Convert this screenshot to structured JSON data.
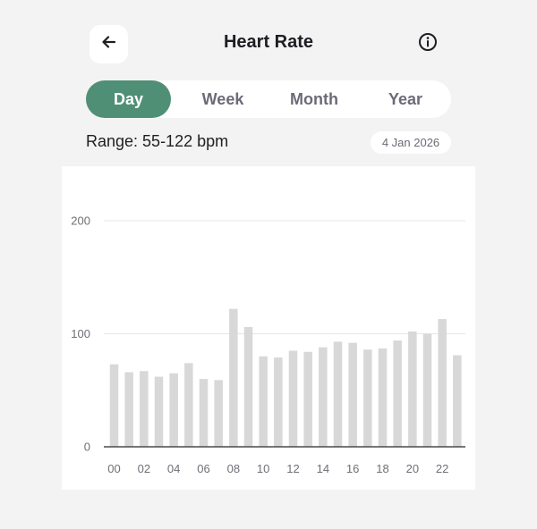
{
  "header": {
    "title": "Heart Rate",
    "back_icon": "arrow-left-icon",
    "info_icon": "info-icon"
  },
  "tabs": [
    {
      "label": "Day",
      "active": true
    },
    {
      "label": "Week",
      "active": false
    },
    {
      "label": "Month",
      "active": false
    },
    {
      "label": "Year",
      "active": false
    }
  ],
  "summary": {
    "range_text": "Range: 55-122 bpm",
    "date": "4 Jan 2026"
  },
  "colors": {
    "accent": "#4f8f76",
    "bar": "#d8d8d8",
    "background": "#f2f3f2"
  },
  "chart_data": {
    "type": "bar",
    "categories": [
      "00",
      "01",
      "02",
      "03",
      "04",
      "05",
      "06",
      "07",
      "08",
      "09",
      "10",
      "11",
      "12",
      "13",
      "14",
      "15",
      "16",
      "17",
      "18",
      "19",
      "20",
      "21",
      "22",
      "23"
    ],
    "x_tick_labels": [
      "00",
      "02",
      "04",
      "06",
      "08",
      "10",
      "12",
      "14",
      "16",
      "18",
      "20",
      "22"
    ],
    "values": [
      73,
      66,
      67,
      62,
      65,
      74,
      60,
      59,
      122,
      106,
      80,
      79,
      85,
      84,
      88,
      93,
      92,
      86,
      87,
      94,
      102,
      100,
      113,
      81
    ],
    "y_ticks": [
      0,
      100,
      200
    ],
    "ylim": [
      0,
      200
    ],
    "grid": true
  }
}
